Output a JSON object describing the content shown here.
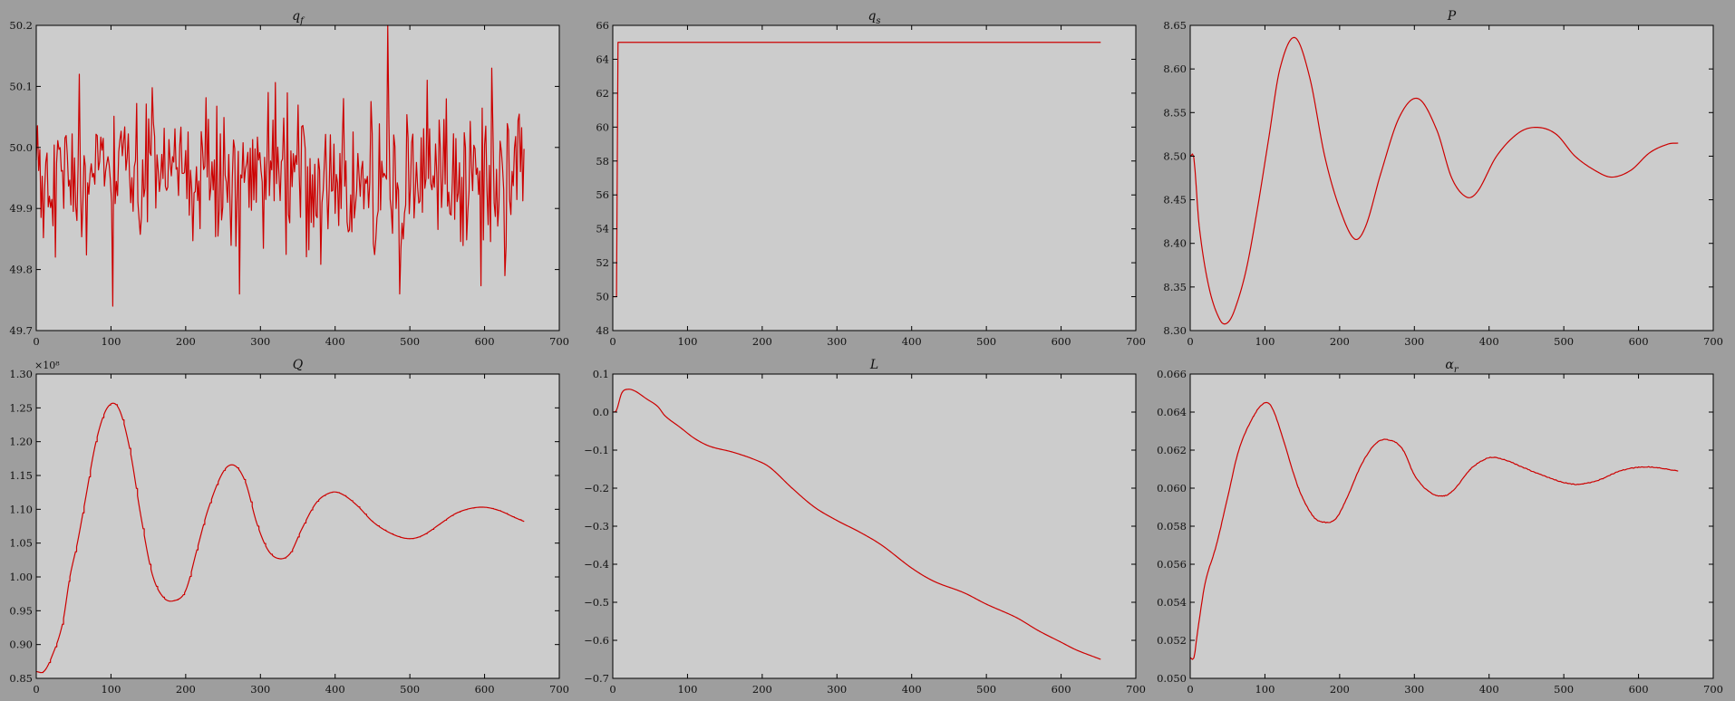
{
  "figure": {
    "background_color": "#9e9e9e",
    "axes_face_color": "#cccccc",
    "line_color": "#cc0000"
  },
  "chart_data": [
    {
      "id": "qf",
      "type": "line",
      "title": "q_f",
      "title_main": "q",
      "title_sub": "f",
      "xlim": [
        0,
        700
      ],
      "ylim": [
        49.7,
        50.2
      ],
      "grid": false,
      "xticks": [
        0,
        100,
        200,
        300,
        400,
        500,
        600,
        700
      ],
      "xtick_labels": [
        "0",
        "100",
        "200",
        "300",
        "400",
        "500",
        "600",
        "700"
      ],
      "yticks": [
        49.7,
        49.8,
        49.9,
        50.0,
        50.1,
        50.2
      ],
      "ytick_labels": [
        "49.7",
        "49.8",
        "49.9",
        "50.0",
        "50.1",
        "50.2"
      ],
      "series": [
        {
          "kind": "noise",
          "x_start": 0,
          "x_end": 653,
          "step": 1.6,
          "mean": 49.95,
          "sd": 0.06,
          "peaks": [
            [
              471,
              50.2
            ],
            [
              103,
              49.74
            ],
            [
              157,
              50.04
            ],
            [
              57,
              50.12
            ],
            [
              272,
              49.76
            ],
            [
              487,
              49.76
            ],
            [
              610,
              50.13
            ],
            [
              412,
              50.08
            ],
            [
              310,
              50.09
            ],
            [
              628,
              49.79
            ]
          ]
        }
      ]
    },
    {
      "id": "qs",
      "type": "line",
      "title": "q_s",
      "title_main": "q",
      "title_sub": "s",
      "xlim": [
        0,
        700
      ],
      "ylim": [
        48,
        66
      ],
      "grid": false,
      "xticks": [
        0,
        100,
        200,
        300,
        400,
        500,
        600,
        700
      ],
      "xtick_labels": [
        "0",
        "100",
        "200",
        "300",
        "400",
        "500",
        "600",
        "700"
      ],
      "yticks": [
        48,
        50,
        52,
        54,
        56,
        58,
        60,
        62,
        64,
        66
      ],
      "ytick_labels": [
        "48",
        "50",
        "52",
        "54",
        "56",
        "58",
        "60",
        "62",
        "64",
        "66"
      ],
      "series": [
        {
          "kind": "points",
          "x": [
            0,
            5,
            7,
            653
          ],
          "y": [
            50,
            50,
            65,
            65
          ]
        }
      ]
    },
    {
      "id": "P",
      "type": "line",
      "title": "P",
      "title_main": "P",
      "title_sub": "",
      "xlim": [
        0,
        700
      ],
      "ylim": [
        8.3,
        8.65
      ],
      "grid": false,
      "xticks": [
        0,
        100,
        200,
        300,
        400,
        500,
        600,
        700
      ],
      "xtick_labels": [
        "0",
        "100",
        "200",
        "300",
        "400",
        "500",
        "600",
        "700"
      ],
      "yticks": [
        8.3,
        8.35,
        8.4,
        8.45,
        8.5,
        8.55,
        8.6,
        8.65
      ],
      "ytick_labels": [
        "8.30",
        "8.35",
        "8.40",
        "8.45",
        "8.50",
        "8.55",
        "8.60",
        "8.65"
      ],
      "series": [
        {
          "kind": "spline",
          "x": [
            0,
            5,
            12,
            25,
            40,
            50,
            60,
            75,
            90,
            105,
            120,
            140,
            160,
            180,
            200,
            220,
            235,
            255,
            280,
            305,
            330,
            350,
            370,
            385,
            410,
            440,
            465,
            490,
            515,
            545,
            565,
            590,
            615,
            640,
            653
          ],
          "y": [
            8.5,
            8.497,
            8.42,
            8.35,
            8.312,
            8.309,
            8.325,
            8.37,
            8.44,
            8.52,
            8.6,
            8.636,
            8.59,
            8.5,
            8.44,
            8.405,
            8.42,
            8.48,
            8.545,
            8.566,
            8.53,
            8.475,
            8.453,
            8.46,
            8.5,
            8.527,
            8.533,
            8.525,
            8.5,
            8.482,
            8.476,
            8.484,
            8.504,
            8.514,
            8.515
          ]
        }
      ]
    },
    {
      "id": "Q",
      "type": "line",
      "title": "Q",
      "title_main": "Q",
      "title_sub": "",
      "multiplier": "×10⁸",
      "xlim": [
        0,
        700
      ],
      "ylim": [
        0.85,
        1.3
      ],
      "grid": false,
      "xticks": [
        0,
        100,
        200,
        300,
        400,
        500,
        600,
        700
      ],
      "xtick_labels": [
        "0",
        "100",
        "200",
        "300",
        "400",
        "500",
        "600",
        "700"
      ],
      "yticks": [
        0.85,
        0.9,
        0.95,
        1.0,
        1.05,
        1.1,
        1.15,
        1.2,
        1.25,
        1.3
      ],
      "ytick_labels": [
        "0.85",
        "0.90",
        "0.95",
        "1.00",
        "1.05",
        "1.10",
        "1.15",
        "1.20",
        "1.25",
        "1.30"
      ],
      "series": [
        {
          "kind": "spline",
          "stair": 9,
          "x": [
            0,
            10,
            20,
            35,
            45,
            55,
            65,
            80,
            95,
            110,
            125,
            140,
            155,
            170,
            185,
            200,
            215,
            230,
            250,
            265,
            280,
            295,
            310,
            325,
            340,
            355,
            375,
            395,
            410,
            430,
            450,
            470,
            490,
            505,
            520,
            540,
            560,
            580,
            600,
            620,
            640,
            653
          ],
          "y": [
            0.86,
            0.86,
            0.88,
            0.93,
            1.0,
            1.05,
            1.11,
            1.2,
            1.25,
            1.25,
            1.19,
            1.09,
            1.005,
            0.97,
            0.965,
            0.98,
            1.04,
            1.1,
            1.155,
            1.165,
            1.14,
            1.08,
            1.04,
            1.027,
            1.035,
            1.07,
            1.11,
            1.125,
            1.122,
            1.105,
            1.082,
            1.067,
            1.058,
            1.057,
            1.063,
            1.078,
            1.093,
            1.101,
            1.103,
            1.098,
            1.088,
            1.082
          ]
        }
      ]
    },
    {
      "id": "L",
      "type": "line",
      "title": "L",
      "title_main": "L",
      "title_sub": "",
      "xlim": [
        0,
        700
      ],
      "ylim": [
        -0.7,
        0.1
      ],
      "grid": false,
      "xticks": [
        0,
        100,
        200,
        300,
        400,
        500,
        600,
        700
      ],
      "xtick_labels": [
        "0",
        "100",
        "200",
        "300",
        "400",
        "500",
        "600",
        "700"
      ],
      "yticks": [
        -0.7,
        -0.6,
        -0.5,
        -0.4,
        -0.3,
        -0.2,
        -0.1,
        0.0,
        0.1
      ],
      "ytick_labels": [
        "−0.7",
        "−0.6",
        "−0.5",
        "−0.4",
        "−0.3",
        "−0.2",
        "−0.1",
        "0.0",
        "0.1"
      ],
      "series": [
        {
          "kind": "spline",
          "x": [
            0,
            5,
            12,
            20,
            30,
            45,
            60,
            70,
            90,
            110,
            130,
            160,
            190,
            210,
            240,
            270,
            300,
            330,
            360,
            400,
            430,
            470,
            500,
            540,
            570,
            600,
            620,
            653
          ],
          "y": [
            0.0,
            0.005,
            0.05,
            0.06,
            0.055,
            0.035,
            0.015,
            -0.01,
            -0.04,
            -0.07,
            -0.09,
            -0.105,
            -0.125,
            -0.145,
            -0.2,
            -0.25,
            -0.285,
            -0.315,
            -0.35,
            -0.41,
            -0.445,
            -0.475,
            -0.505,
            -0.54,
            -0.575,
            -0.605,
            -0.625,
            -0.65
          ]
        }
      ]
    },
    {
      "id": "alpha_r",
      "type": "line",
      "title": "α_r",
      "title_main": "α",
      "title_sub": "r",
      "xlim": [
        0,
        700
      ],
      "ylim": [
        0.05,
        0.066
      ],
      "grid": false,
      "xticks": [
        0,
        100,
        200,
        300,
        400,
        500,
        600,
        700
      ],
      "xtick_labels": [
        "0",
        "100",
        "200",
        "300",
        "400",
        "500",
        "600",
        "700"
      ],
      "yticks": [
        0.05,
        0.052,
        0.054,
        0.056,
        0.058,
        0.06,
        0.062,
        0.064,
        0.066
      ],
      "ytick_labels": [
        "0.050",
        "0.052",
        "0.054",
        "0.056",
        "0.058",
        "0.060",
        "0.062",
        "0.064",
        "0.066"
      ],
      "series": [
        {
          "kind": "spline",
          "jitter": 4e-05,
          "x": [
            0,
            5,
            10,
            20,
            35,
            50,
            65,
            85,
            100,
            110,
            125,
            145,
            165,
            180,
            195,
            210,
            230,
            250,
            270,
            285,
            300,
            320,
            340,
            355,
            375,
            400,
            420,
            445,
            470,
            500,
            520,
            545,
            575,
            600,
            620,
            653
          ],
          "y": [
            0.0511,
            0.0511,
            0.0525,
            0.055,
            0.057,
            0.0595,
            0.062,
            0.0638,
            0.0645,
            0.0642,
            0.0625,
            0.06,
            0.0585,
            0.0582,
            0.0584,
            0.0595,
            0.0613,
            0.0624,
            0.0625,
            0.062,
            0.0607,
            0.0598,
            0.0596,
            0.06,
            0.061,
            0.0616,
            0.0615,
            0.0611,
            0.0607,
            0.0603,
            0.0602,
            0.0604,
            0.0609,
            0.0611,
            0.0611,
            0.0609
          ]
        }
      ]
    }
  ]
}
